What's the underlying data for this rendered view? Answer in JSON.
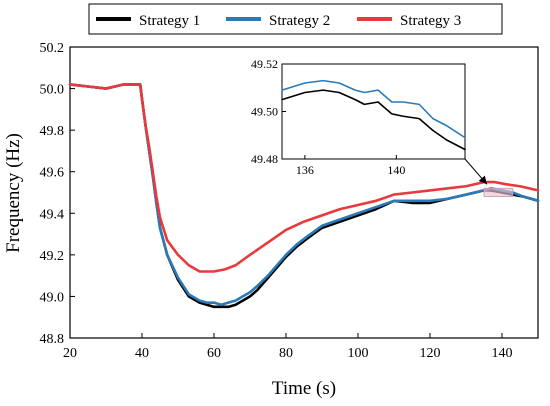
{
  "chart_data": [
    {
      "type": "line",
      "xlabel": "Time (s)",
      "ylabel": "Frequency (Hz)",
      "xlim": [
        20,
        150
      ],
      "ylim": [
        48.8,
        50.2
      ],
      "xticks": [
        20,
        40,
        60,
        80,
        100,
        120,
        140
      ],
      "xtick_labels": [
        "20",
        "40",
        "60",
        "80",
        "100",
        "120",
        "140"
      ],
      "yticks": [
        48.8,
        49.0,
        49.2,
        49.4,
        49.6,
        49.8,
        50.0,
        50.2
      ],
      "ytick_labels": [
        "48.8",
        "49.0",
        "49.2",
        "49.4",
        "49.6",
        "49.8",
        "50.0",
        "50.2"
      ],
      "grid": false,
      "legend_position": "top",
      "series": [
        {
          "name": "Strategy 1",
          "color": "#000000",
          "x": [
            20,
            25,
            30,
            35,
            39.5,
            40,
            41,
            42,
            43,
            44,
            45,
            47,
            50,
            53,
            56,
            58,
            60,
            62,
            64,
            66,
            68,
            70,
            72,
            75,
            78,
            80,
            83,
            86,
            90,
            95,
            100,
            105,
            110,
            115,
            120,
            125,
            130,
            135,
            137,
            140,
            143,
            146,
            150
          ],
          "y": [
            50.02,
            50.01,
            50.0,
            50.02,
            50.02,
            49.95,
            49.82,
            49.7,
            49.58,
            49.45,
            49.33,
            49.2,
            49.08,
            49.0,
            48.97,
            48.96,
            48.95,
            48.95,
            48.95,
            48.96,
            48.98,
            49.0,
            49.03,
            49.09,
            49.15,
            49.19,
            49.24,
            49.28,
            49.33,
            49.36,
            49.39,
            49.42,
            49.46,
            49.45,
            49.45,
            49.47,
            49.49,
            49.51,
            49.51,
            49.5,
            49.49,
            49.48,
            49.46
          ]
        },
        {
          "name": "Strategy 2",
          "color": "#2a7ab8",
          "x": [
            20,
            25,
            30,
            35,
            39.5,
            40,
            41,
            42,
            43,
            44,
            45,
            47,
            50,
            53,
            56,
            58,
            60,
            62,
            64,
            66,
            68,
            70,
            72,
            75,
            78,
            80,
            83,
            86,
            90,
            95,
            100,
            105,
            110,
            115,
            120,
            125,
            130,
            135,
            137,
            140,
            143,
            146,
            150
          ],
          "y": [
            50.02,
            50.01,
            50.0,
            50.02,
            50.02,
            49.95,
            49.82,
            49.7,
            49.58,
            49.45,
            49.33,
            49.2,
            49.09,
            49.01,
            48.98,
            48.97,
            48.97,
            48.96,
            48.97,
            48.98,
            49.0,
            49.02,
            49.05,
            49.1,
            49.16,
            49.2,
            49.25,
            49.29,
            49.34,
            49.37,
            49.4,
            49.43,
            49.46,
            49.46,
            49.46,
            49.47,
            49.49,
            49.51,
            49.52,
            49.51,
            49.5,
            49.48,
            49.46
          ]
        },
        {
          "name": "Strategy 3",
          "color": "#e8393c",
          "x": [
            20,
            25,
            30,
            35,
            39.5,
            40,
            41,
            42,
            43,
            44,
            45,
            47,
            50,
            53,
            56,
            58,
            60,
            63,
            66,
            70,
            75,
            80,
            85,
            90,
            95,
            100,
            105,
            110,
            115,
            120,
            125,
            130,
            135,
            138,
            141,
            145,
            150
          ],
          "y": [
            50.02,
            50.01,
            50.0,
            50.02,
            50.02,
            49.95,
            49.82,
            49.72,
            49.6,
            49.48,
            49.38,
            49.27,
            49.2,
            49.15,
            49.12,
            49.12,
            49.12,
            49.13,
            49.15,
            49.2,
            49.26,
            49.32,
            49.36,
            49.39,
            49.42,
            49.44,
            49.46,
            49.49,
            49.5,
            49.51,
            49.52,
            49.53,
            49.55,
            49.55,
            49.54,
            49.53,
            49.51
          ]
        }
      ]
    },
    {
      "type": "line",
      "xlim": [
        135,
        143
      ],
      "ylim": [
        49.48,
        49.52
      ],
      "xticks": [
        136,
        140
      ],
      "xtick_labels": [
        "136",
        "140"
      ],
      "yticks": [
        49.48,
        49.5,
        49.52
      ],
      "ytick_labels": [
        "49.48",
        "49.50",
        "49.52"
      ],
      "series": [
        {
          "name": "Strategy 1",
          "color": "#000000",
          "x": [
            135,
            136,
            136.8,
            137.5,
            138.2,
            138.6,
            139.2,
            139.8,
            140.3,
            141,
            141.6,
            142.2,
            143
          ],
          "y": [
            49.505,
            49.508,
            49.509,
            49.508,
            49.505,
            49.503,
            49.504,
            49.499,
            49.498,
            49.497,
            49.492,
            49.488,
            49.484
          ]
        },
        {
          "name": "Strategy 2",
          "color": "#2a7ab8",
          "x": [
            135,
            136,
            136.8,
            137.5,
            138.2,
            138.6,
            139.2,
            139.8,
            140.3,
            141,
            141.6,
            142.2,
            143
          ],
          "y": [
            49.509,
            49.512,
            49.513,
            49.512,
            49.509,
            49.508,
            49.509,
            49.504,
            49.504,
            49.503,
            49.497,
            49.494,
            49.489
          ]
        }
      ]
    }
  ]
}
